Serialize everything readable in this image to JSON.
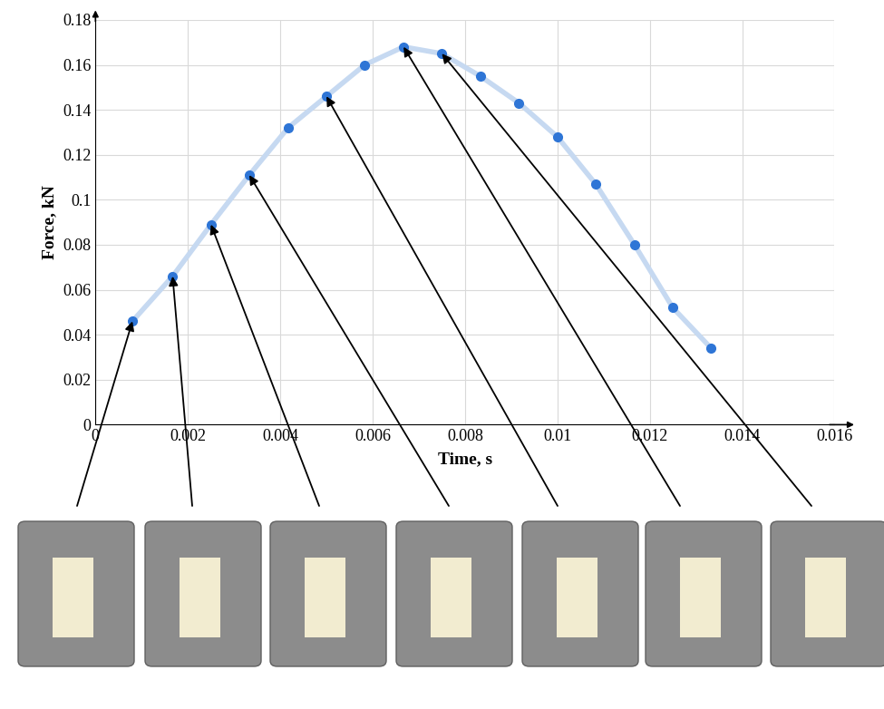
{
  "chart_data": {
    "type": "line",
    "x_label": "Time, s",
    "y_label": "Force, kN",
    "x": [
      0.0008,
      0.00167,
      0.0025,
      0.00333,
      0.00417,
      0.005,
      0.00583,
      0.00667,
      0.0075,
      0.00833,
      0.00917,
      0.01,
      0.01083,
      0.01167,
      0.0125,
      0.01333
    ],
    "values": [
      0.046,
      0.066,
      0.089,
      0.111,
      0.132,
      0.146,
      0.16,
      0.168,
      0.165,
      0.155,
      0.143,
      0.128,
      0.107,
      0.08,
      0.052,
      0.034
    ],
    "color": "#2e75d6",
    "marker": "o",
    "line_style": "solid",
    "xlim": [
      0,
      0.016
    ],
    "xticks": [
      0,
      0.002,
      0.004,
      0.006,
      0.008,
      0.01,
      0.012,
      0.014,
      0.016
    ],
    "ylim": [
      0,
      0.18
    ],
    "yticks": [
      0,
      0.02,
      0.04,
      0.06,
      0.08,
      0.1,
      0.12,
      0.14,
      0.16,
      0.18
    ],
    "grid": true
  }
}
